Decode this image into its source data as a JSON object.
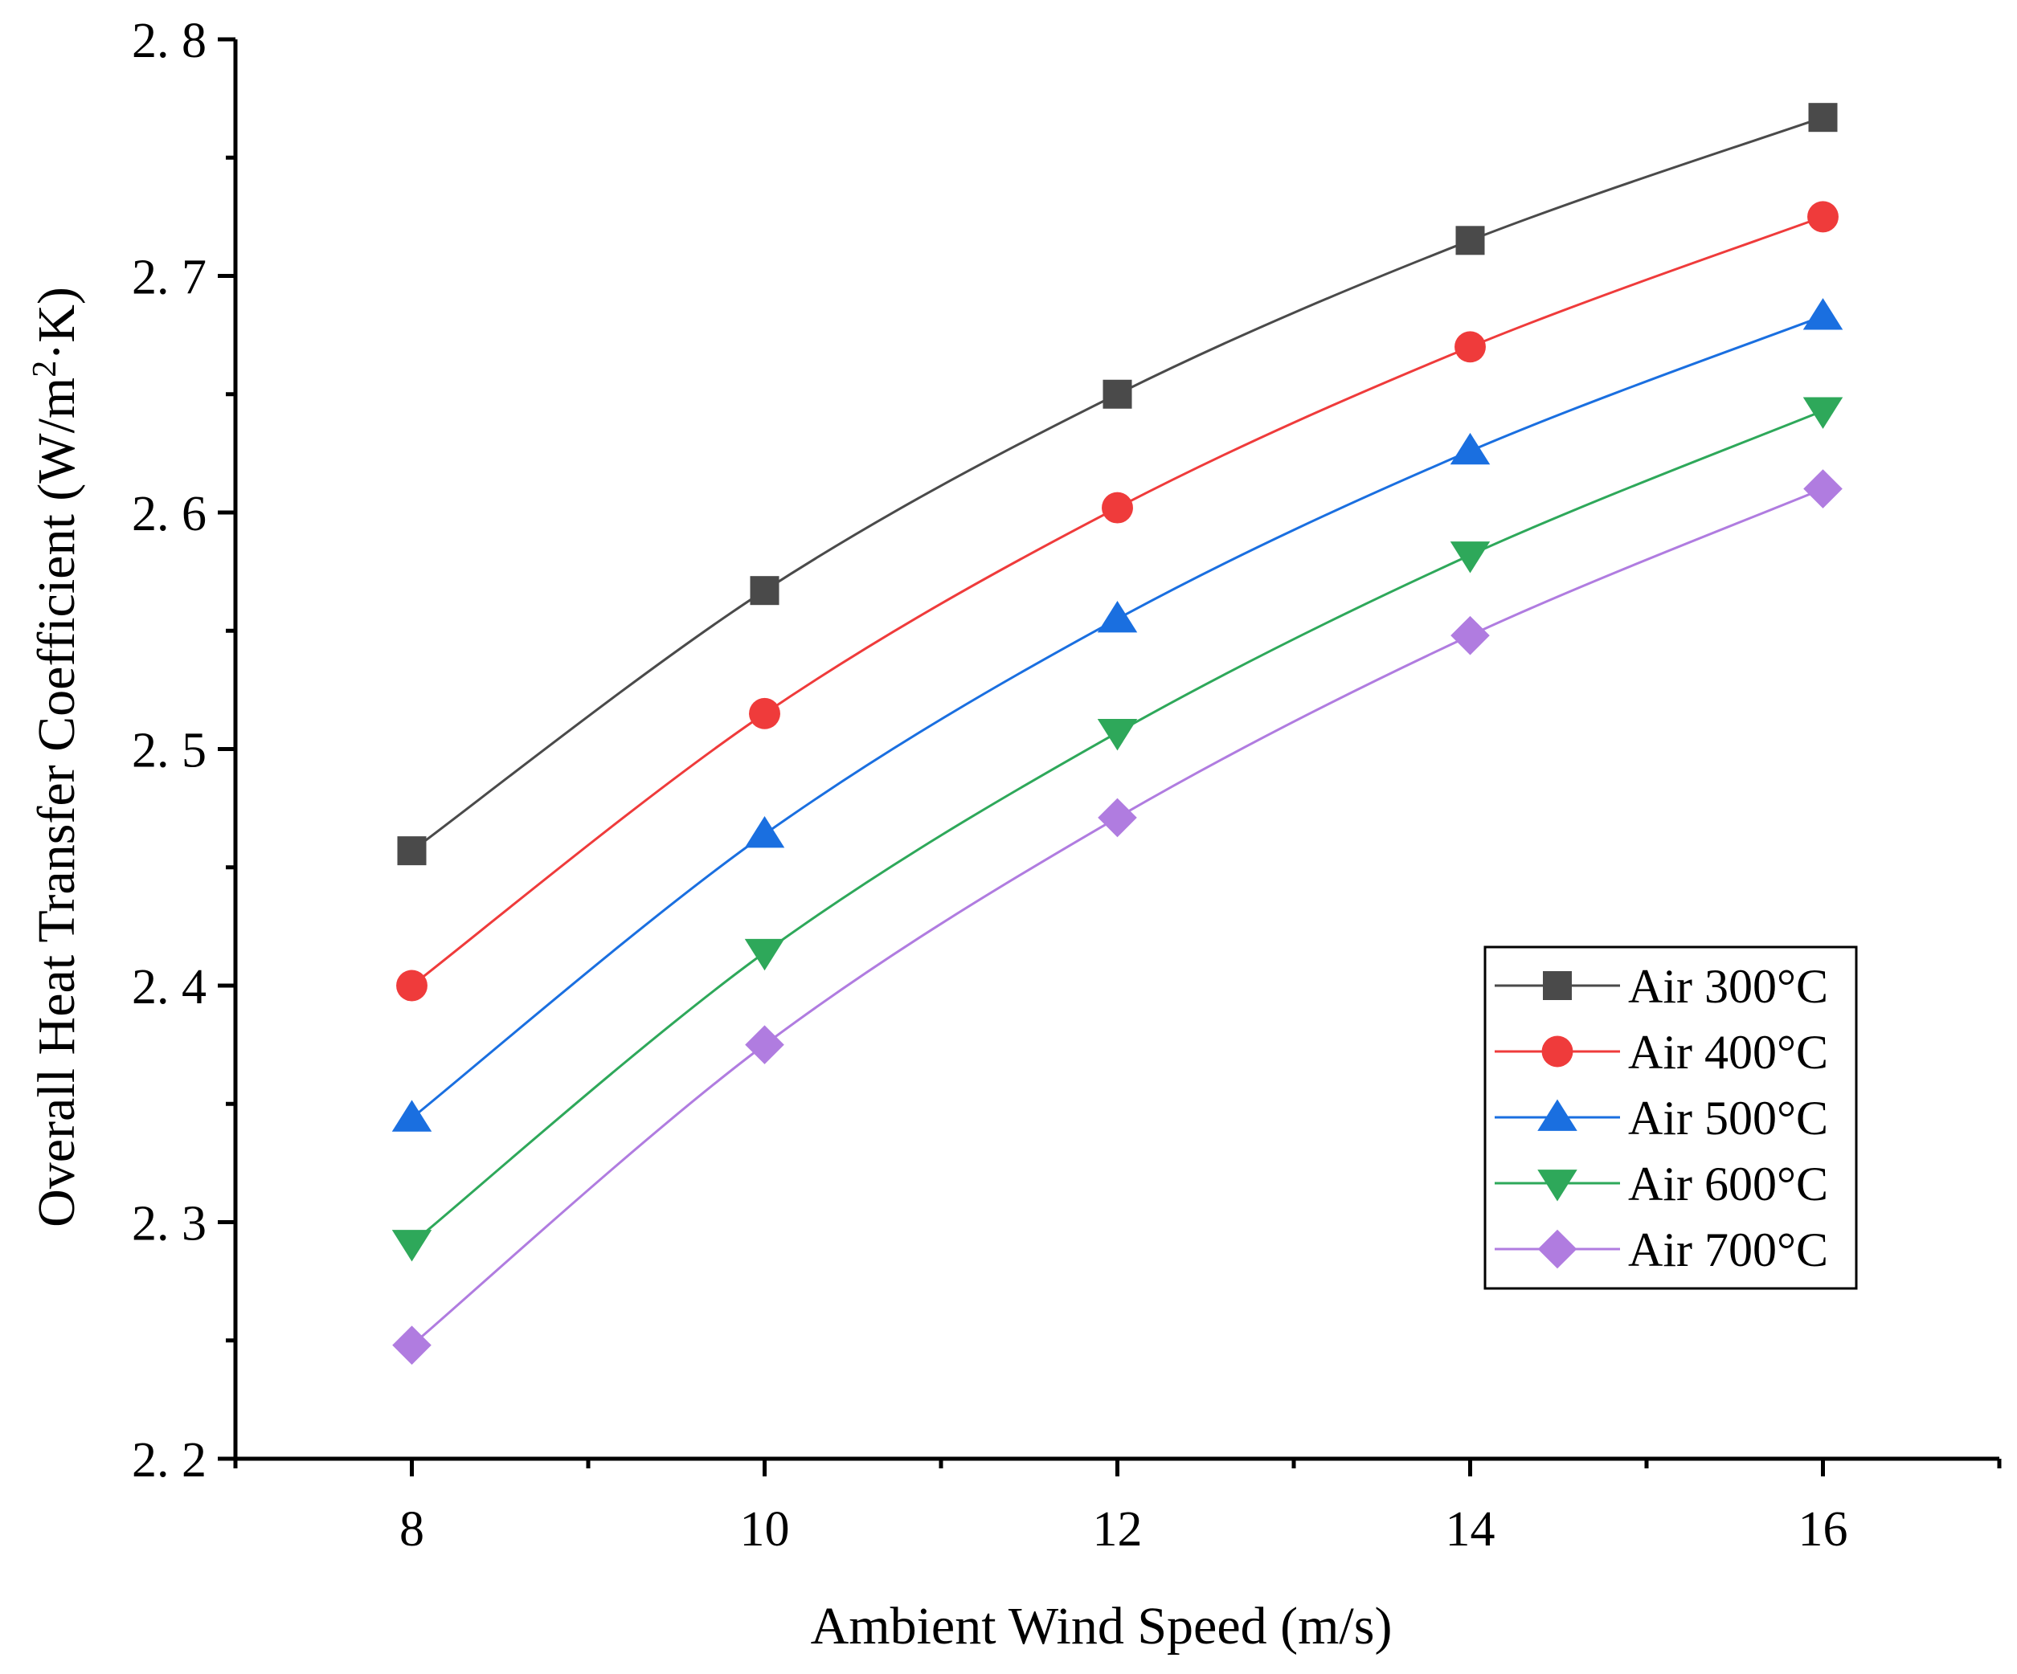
{
  "chart_data": {
    "type": "line",
    "title": "",
    "xlabel": "Ambient Wind Speed (m/s)",
    "ylabel": "Overall Heat Transfer Coefficient (W/m²·K)",
    "ylabel_parts": {
      "main": "Overall Heat Transfer Coefficient (W/m",
      "sup": "2",
      "tail": "·K)"
    },
    "xlim": [
      7,
      17
    ],
    "ylim": [
      2.2,
      2.8
    ],
    "xticks": [
      8,
      10,
      12,
      14,
      16
    ],
    "xtick_labels": [
      "8",
      "10",
      "12",
      "14",
      "16"
    ],
    "yticks": [
      2.2,
      2.3,
      2.4,
      2.5,
      2.6,
      2.7,
      2.8
    ],
    "ytick_labels": [
      "2. 2",
      "2. 3",
      "2. 4",
      "2. 5",
      "2. 6",
      "2. 7",
      "2. 8"
    ],
    "x": [
      8,
      10,
      12,
      14,
      16
    ],
    "grid": false,
    "legend_position": "lower-right",
    "series": [
      {
        "name": "Air 300°C",
        "marker": "square",
        "color": "#4a4a4a",
        "values": [
          2.457,
          2.567,
          2.65,
          2.715,
          2.767
        ]
      },
      {
        "name": "Air 400°C",
        "marker": "circle",
        "color": "#ef3b3b",
        "values": [
          2.4,
          2.515,
          2.602,
          2.67,
          2.725
        ]
      },
      {
        "name": "Air 500°C",
        "marker": "triangle-up",
        "color": "#1a6fe0",
        "values": [
          2.344,
          2.464,
          2.555,
          2.626,
          2.683
        ]
      },
      {
        "name": "Air 600°C",
        "marker": "triangle-down",
        "color": "#2ea85a",
        "values": [
          2.291,
          2.414,
          2.507,
          2.582,
          2.643
        ]
      },
      {
        "name": "Air 700°C",
        "marker": "diamond",
        "color": "#b07ce0",
        "values": [
          2.248,
          2.375,
          2.471,
          2.548,
          2.61
        ]
      }
    ]
  }
}
